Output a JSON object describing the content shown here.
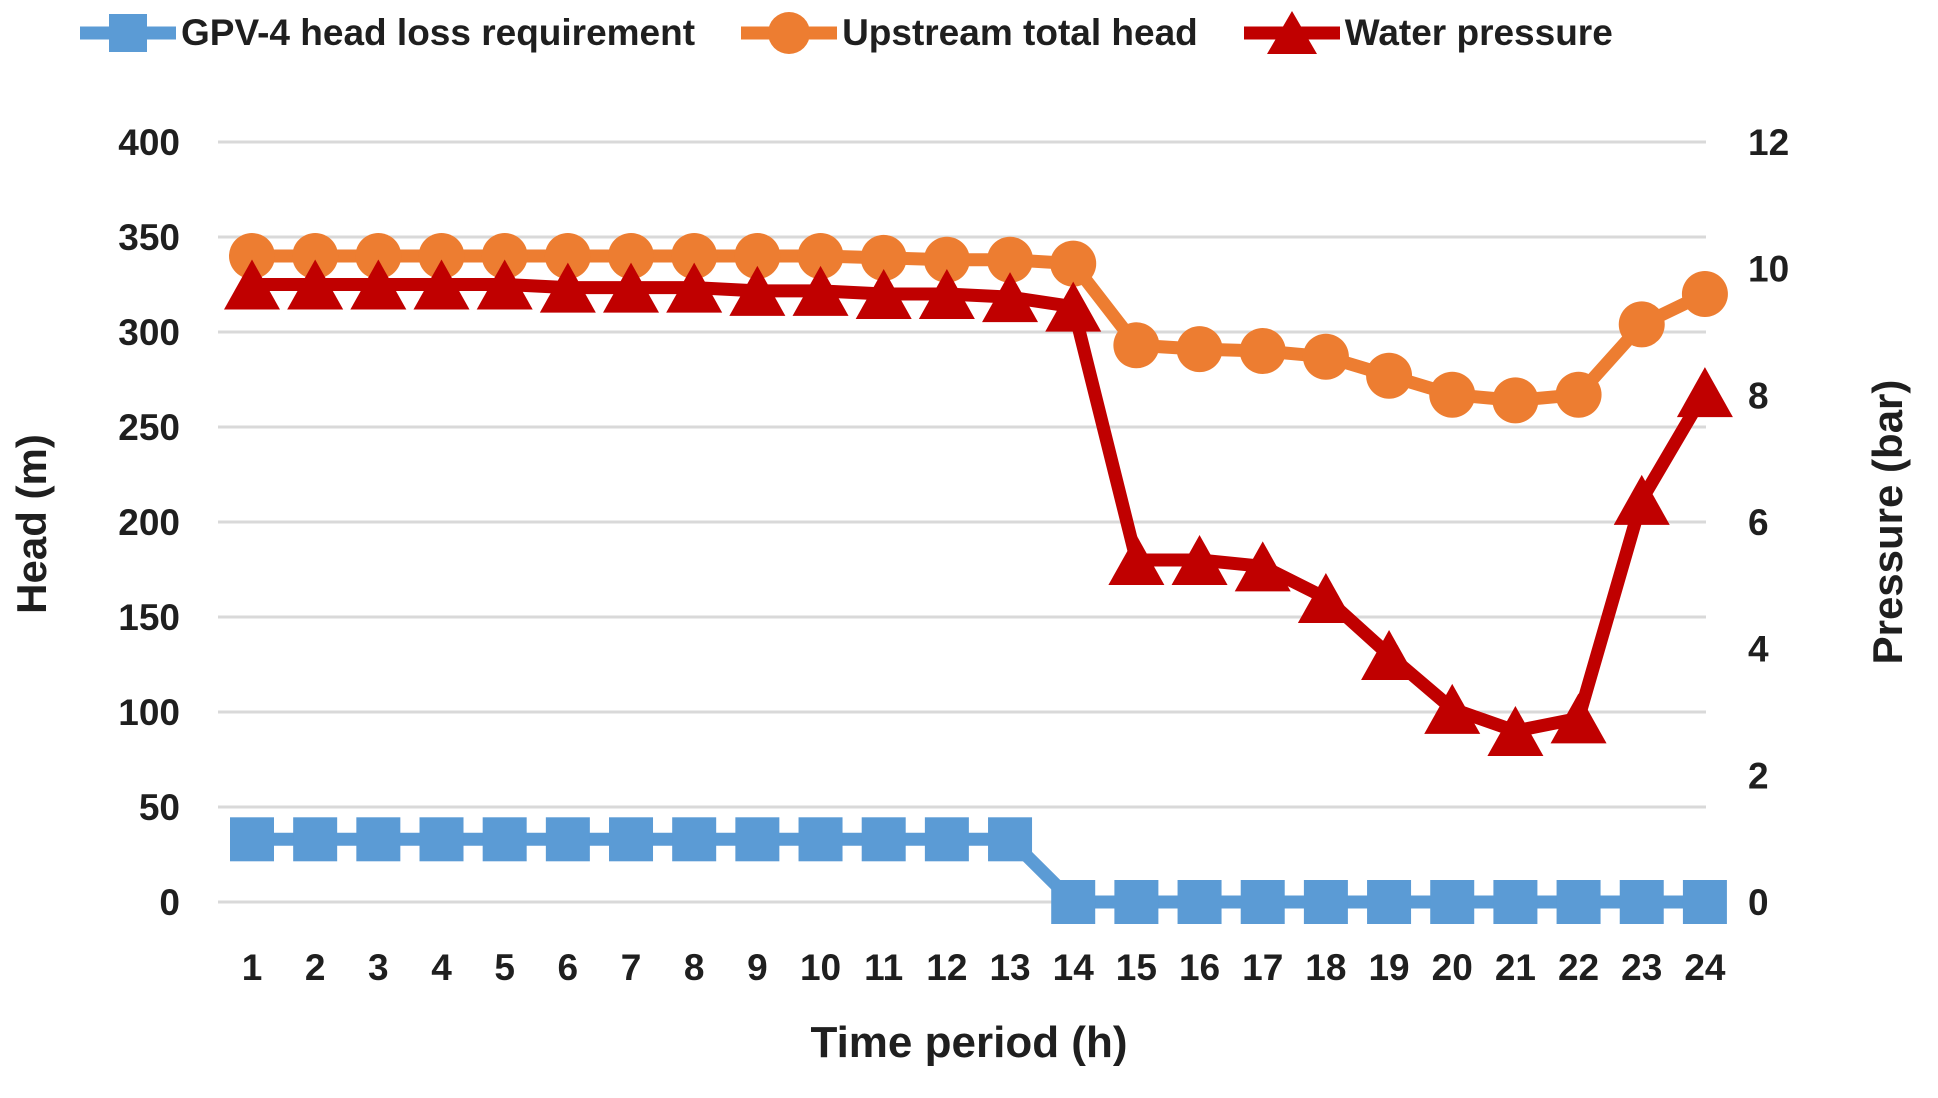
{
  "chart_data": {
    "type": "line",
    "title": "",
    "xlabel": "Time period (h)",
    "x_categories": [
      1,
      2,
      3,
      4,
      5,
      6,
      7,
      8,
      9,
      10,
      11,
      12,
      13,
      14,
      15,
      16,
      17,
      18,
      19,
      20,
      21,
      22,
      23,
      24
    ],
    "axes": {
      "left": {
        "label": "Head (m)",
        "min": 0,
        "max": 400,
        "step": 50,
        "ticks": [
          400,
          350,
          300,
          250,
          200,
          150,
          100,
          50,
          0
        ]
      },
      "right": {
        "label": "Pressure (bar)",
        "min": 0,
        "max": 12,
        "step": 2,
        "ticks": [
          12,
          10,
          8,
          6,
          4,
          2,
          0
        ]
      }
    },
    "grid": "horizontal-only",
    "legend_position": "top",
    "gridline_color": "#d9d9d9",
    "text_color": "#1f1f1f",
    "background_color": "#ffffff",
    "series": [
      {
        "name": "GPV-4 head loss requirement",
        "color": "#5B9BD5",
        "marker": "square",
        "axis": "left",
        "values": [
          33,
          33,
          33,
          33,
          33,
          33,
          33,
          33,
          33,
          33,
          33,
          33,
          33,
          0,
          0,
          0,
          0,
          0,
          0,
          0,
          0,
          0,
          0,
          0
        ]
      },
      {
        "name": "Upstream total head",
        "color": "#ED7D31",
        "marker": "circle",
        "axis": "left",
        "values": [
          340,
          340,
          340,
          340,
          340,
          340,
          340,
          340,
          340,
          340,
          339,
          338,
          338,
          336,
          293,
          291,
          290,
          287,
          277,
          267,
          264,
          267,
          304,
          320
        ]
      },
      {
        "name": "Water pressure",
        "color": "#C00000",
        "marker": "triangle",
        "axis": "right",
        "values": [
          9.75,
          9.75,
          9.75,
          9.75,
          9.75,
          9.7,
          9.7,
          9.7,
          9.65,
          9.65,
          9.6,
          9.6,
          9.55,
          9.4,
          5.4,
          5.4,
          5.3,
          4.8,
          3.9,
          3.05,
          2.7,
          2.9,
          6.35,
          8.05
        ]
      }
    ]
  }
}
